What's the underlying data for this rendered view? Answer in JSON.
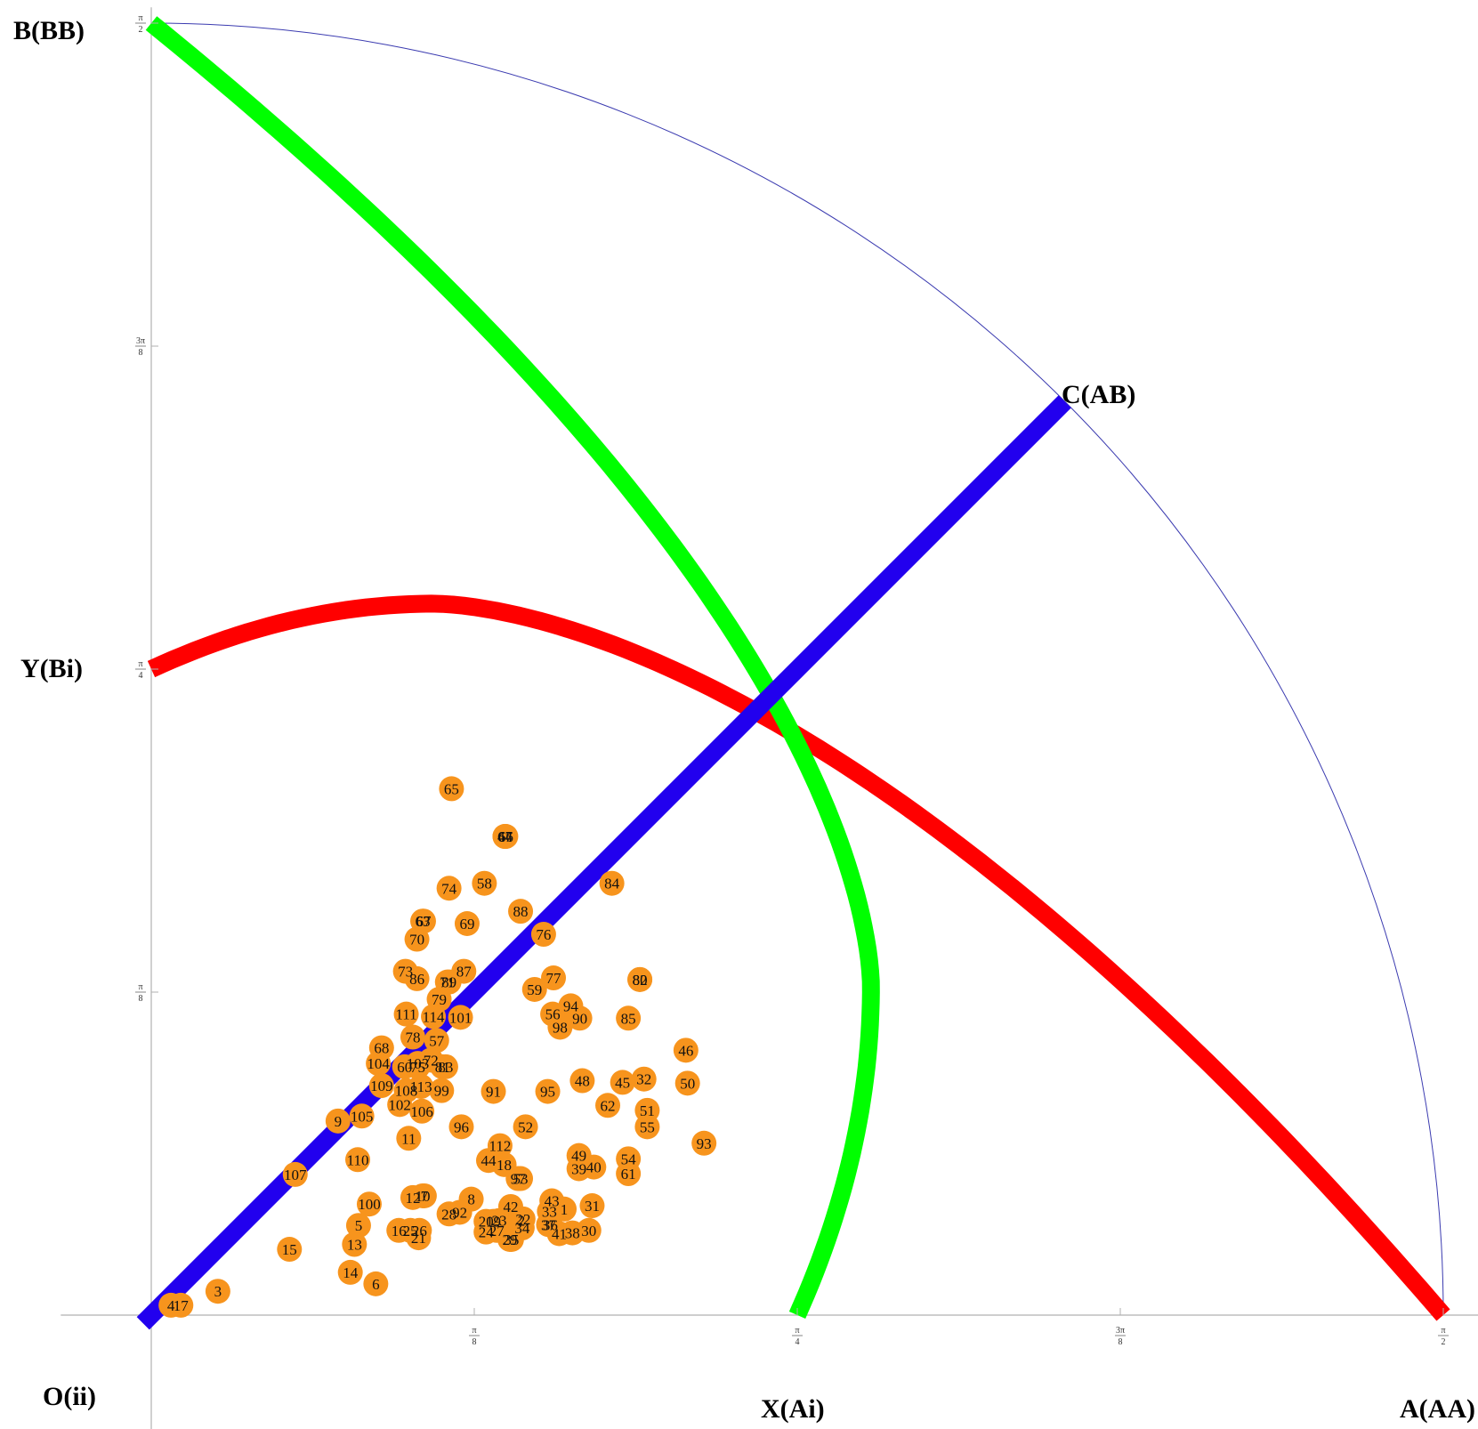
{
  "chart_data": {
    "type": "scatter",
    "title": "",
    "xlabel": "",
    "ylabel": "",
    "xlim": [
      -0.11,
      1.62
    ],
    "ylim": [
      -0.14,
      1.59
    ],
    "x_ticks": [
      {
        "value": 0.3927,
        "label": "π/8"
      },
      {
        "value": 0.7854,
        "label": "π/4"
      },
      {
        "value": 1.1781,
        "label": "3π/8"
      },
      {
        "value": 1.5708,
        "label": "π/2"
      }
    ],
    "y_ticks": [
      {
        "value": 0.3927,
        "label": "π/8"
      },
      {
        "value": 0.7854,
        "label": "π/4"
      },
      {
        "value": 1.1781,
        "label": "3π/8"
      },
      {
        "value": 1.5708,
        "label": "π/2"
      }
    ],
    "corner_labels": {
      "top_left": "B(BB)",
      "mid_left": "Y(Bi)",
      "bottom_left": "O(ii)",
      "bottom_middle": "X(Ai)",
      "bottom_right": "A(AA)",
      "diagonal_end": "C(AB)"
    },
    "colors": {
      "points": "#f7941d",
      "boundary_arc": "#3b3bb0",
      "diagonal": "#2200ee",
      "red_curve": "#ff0000",
      "green_curve": "#00ff00",
      "axes": "#b0b0b0"
    },
    "points": [
      {
        "label": "1",
        "x": 0.502,
        "y": 0.129
      },
      {
        "label": "2",
        "x": 0.45,
        "y": 0.115
      },
      {
        "label": "3",
        "x": 0.081,
        "y": 0.029
      },
      {
        "label": "4",
        "x": 0.024,
        "y": 0.012
      },
      {
        "label": "5",
        "x": 0.252,
        "y": 0.109
      },
      {
        "label": "6",
        "x": 0.273,
        "y": 0.038
      },
      {
        "label": "7",
        "x": 0.332,
        "y": 0.145
      },
      {
        "label": "8",
        "x": 0.389,
        "y": 0.141
      },
      {
        "label": "9",
        "x": 0.227,
        "y": 0.236
      },
      {
        "label": "10",
        "x": 0.33,
        "y": 0.145
      },
      {
        "label": "11",
        "x": 0.313,
        "y": 0.215
      },
      {
        "label": "12",
        "x": 0.318,
        "y": 0.143
      },
      {
        "label": "13",
        "x": 0.247,
        "y": 0.086
      },
      {
        "label": "14",
        "x": 0.242,
        "y": 0.052
      },
      {
        "label": "15",
        "x": 0.168,
        "y": 0.08
      },
      {
        "label": "16",
        "x": 0.301,
        "y": 0.103
      },
      {
        "label": "17",
        "x": 0.036,
        "y": 0.012
      },
      {
        "label": "18",
        "x": 0.429,
        "y": 0.183
      },
      {
        "label": "19",
        "x": 0.416,
        "y": 0.114
      },
      {
        "label": "20",
        "x": 0.407,
        "y": 0.114
      },
      {
        "label": "21",
        "x": 0.325,
        "y": 0.094
      },
      {
        "label": "22",
        "x": 0.452,
        "y": 0.117
      },
      {
        "label": "23",
        "x": 0.423,
        "y": 0.115
      },
      {
        "label": "24",
        "x": 0.407,
        "y": 0.101
      },
      {
        "label": "25",
        "x": 0.315,
        "y": 0.103
      },
      {
        "label": "26",
        "x": 0.326,
        "y": 0.103
      },
      {
        "label": "27",
        "x": 0.42,
        "y": 0.103
      },
      {
        "label": "28",
        "x": 0.362,
        "y": 0.123
      },
      {
        "label": "29",
        "x": 0.436,
        "y": 0.092
      },
      {
        "label": "30",
        "x": 0.532,
        "y": 0.103
      },
      {
        "label": "31",
        "x": 0.536,
        "y": 0.133
      },
      {
        "label": "32",
        "x": 0.599,
        "y": 0.287
      },
      {
        "label": "33",
        "x": 0.484,
        "y": 0.126
      },
      {
        "label": "34",
        "x": 0.451,
        "y": 0.106
      },
      {
        "label": "35",
        "x": 0.438,
        "y": 0.092
      },
      {
        "label": "36",
        "x": 0.485,
        "y": 0.11
      },
      {
        "label": "37",
        "x": 0.483,
        "y": 0.11
      },
      {
        "label": "38",
        "x": 0.512,
        "y": 0.1
      },
      {
        "label": "39",
        "x": 0.52,
        "y": 0.178
      },
      {
        "label": "40",
        "x": 0.538,
        "y": 0.18
      },
      {
        "label": "41",
        "x": 0.496,
        "y": 0.099
      },
      {
        "label": "42",
        "x": 0.437,
        "y": 0.132
      },
      {
        "label": "43",
        "x": 0.487,
        "y": 0.139
      },
      {
        "label": "44",
        "x": 0.41,
        "y": 0.188
      },
      {
        "label": "45",
        "x": 0.573,
        "y": 0.283
      },
      {
        "label": "46",
        "x": 0.65,
        "y": 0.322
      },
      {
        "label": "47",
        "x": 0.43,
        "y": 0.582
      },
      {
        "label": "48",
        "x": 0.524,
        "y": 0.285
      },
      {
        "label": "49",
        "x": 0.52,
        "y": 0.194
      },
      {
        "label": "50",
        "x": 0.652,
        "y": 0.282
      },
      {
        "label": "51",
        "x": 0.603,
        "y": 0.249
      },
      {
        "label": "52",
        "x": 0.455,
        "y": 0.229
      },
      {
        "label": "53",
        "x": 0.449,
        "y": 0.166
      },
      {
        "label": "54",
        "x": 0.58,
        "y": 0.19
      },
      {
        "label": "55",
        "x": 0.603,
        "y": 0.229
      },
      {
        "label": "56",
        "x": 0.488,
        "y": 0.366
      },
      {
        "label": "57",
        "x": 0.347,
        "y": 0.334
      },
      {
        "label": "58",
        "x": 0.405,
        "y": 0.525
      },
      {
        "label": "59",
        "x": 0.466,
        "y": 0.396
      },
      {
        "label": "60",
        "x": 0.308,
        "y": 0.302
      },
      {
        "label": "61",
        "x": 0.58,
        "y": 0.172
      },
      {
        "label": "62",
        "x": 0.555,
        "y": 0.255
      },
      {
        "label": "63",
        "x": 0.33,
        "y": 0.479
      },
      {
        "label": "64",
        "x": 0.43,
        "y": 0.582
      },
      {
        "label": "65",
        "x": 0.365,
        "y": 0.64
      },
      {
        "label": "66",
        "x": 0.431,
        "y": 0.582
      },
      {
        "label": "67",
        "x": 0.331,
        "y": 0.479
      },
      {
        "label": "68",
        "x": 0.28,
        "y": 0.325
      },
      {
        "label": "69",
        "x": 0.384,
        "y": 0.476
      },
      {
        "label": "70",
        "x": 0.323,
        "y": 0.457
      },
      {
        "label": "71",
        "x": 0.36,
        "y": 0.405
      },
      {
        "label": "72",
        "x": 0.34,
        "y": 0.31
      },
      {
        "label": "73",
        "x": 0.309,
        "y": 0.418
      },
      {
        "label": "74",
        "x": 0.362,
        "y": 0.519
      },
      {
        "label": "75",
        "x": 0.324,
        "y": 0.302
      },
      {
        "label": "76",
        "x": 0.477,
        "y": 0.463
      },
      {
        "label": "77",
        "x": 0.489,
        "y": 0.41
      },
      {
        "label": "78",
        "x": 0.318,
        "y": 0.338
      },
      {
        "label": "79",
        "x": 0.35,
        "y": 0.384
      },
      {
        "label": "80",
        "x": 0.594,
        "y": 0.408
      },
      {
        "label": "81",
        "x": 0.354,
        "y": 0.302
      },
      {
        "label": "82",
        "x": 0.594,
        "y": 0.408
      },
      {
        "label": "83",
        "x": 0.358,
        "y": 0.302
      },
      {
        "label": "84",
        "x": 0.56,
        "y": 0.525
      },
      {
        "label": "85",
        "x": 0.58,
        "y": 0.361
      },
      {
        "label": "86",
        "x": 0.323,
        "y": 0.409
      },
      {
        "label": "87",
        "x": 0.38,
        "y": 0.418
      },
      {
        "label": "88",
        "x": 0.449,
        "y": 0.491
      },
      {
        "label": "89",
        "x": 0.362,
        "y": 0.405
      },
      {
        "label": "90",
        "x": 0.521,
        "y": 0.361
      },
      {
        "label": "91",
        "x": 0.416,
        "y": 0.272
      },
      {
        "label": "92",
        "x": 0.375,
        "y": 0.125
      },
      {
        "label": "93",
        "x": 0.672,
        "y": 0.209
      },
      {
        "label": "94",
        "x": 0.51,
        "y": 0.376
      },
      {
        "label": "95",
        "x": 0.482,
        "y": 0.272
      },
      {
        "label": "96",
        "x": 0.377,
        "y": 0.229
      },
      {
        "label": "97",
        "x": 0.446,
        "y": 0.166
      },
      {
        "label": "98",
        "x": 0.497,
        "y": 0.35
      },
      {
        "label": "99",
        "x": 0.353,
        "y": 0.273
      },
      {
        "label": "100",
        "x": 0.265,
        "y": 0.135
      },
      {
        "label": "101",
        "x": 0.376,
        "y": 0.362
      },
      {
        "label": "102",
        "x": 0.302,
        "y": 0.256
      },
      {
        "label": "103",
        "x": 0.324,
        "y": 0.306
      },
      {
        "label": "104",
        "x": 0.276,
        "y": 0.306
      },
      {
        "label": "105",
        "x": 0.256,
        "y": 0.242
      },
      {
        "label": "106",
        "x": 0.329,
        "y": 0.248
      },
      {
        "label": "107",
        "x": 0.175,
        "y": 0.171
      },
      {
        "label": "108",
        "x": 0.31,
        "y": 0.273
      },
      {
        "label": "109",
        "x": 0.28,
        "y": 0.279
      },
      {
        "label": "110",
        "x": 0.251,
        "y": 0.189
      },
      {
        "label": "111",
        "x": 0.31,
        "y": 0.366
      },
      {
        "label": "112",
        "x": 0.424,
        "y": 0.206
      },
      {
        "label": "113",
        "x": 0.328,
        "y": 0.278
      },
      {
        "label": "114",
        "x": 0.343,
        "y": 0.363
      }
    ]
  }
}
